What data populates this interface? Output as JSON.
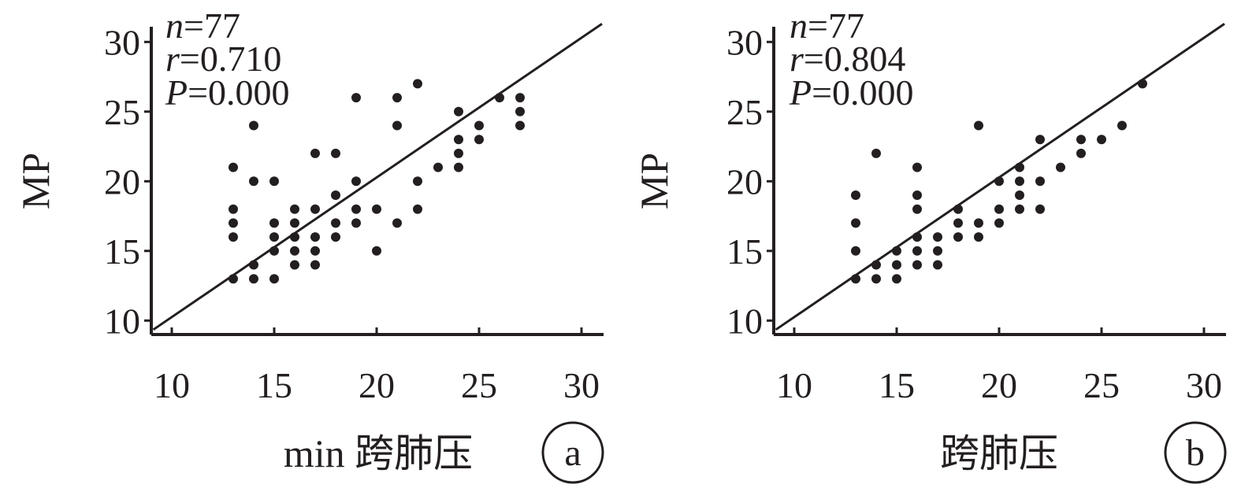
{
  "chart_data": [
    {
      "type": "scatter",
      "panel_label": "a",
      "xlabel": "min 跨肺压",
      "ylabel": "MP",
      "xlim": [
        9,
        31
      ],
      "ylim": [
        9,
        31
      ],
      "x_ticks": [
        "10",
        "15",
        "20",
        "25",
        "30"
      ],
      "y_ticks": [
        "10",
        "15",
        "20",
        "25",
        "30"
      ],
      "stats": {
        "n_label": "n",
        "n_value": "=77",
        "r_label": "r",
        "r_value": "=0.710",
        "p_label": "P",
        "p_value": "=0.000"
      },
      "fit_line": {
        "x": [
          9.1,
          31.0
        ],
        "y": [
          9.35,
          31.3
        ]
      },
      "points": [
        [
          13,
          21
        ],
        [
          13,
          18
        ],
        [
          13,
          17
        ],
        [
          13,
          16
        ],
        [
          13,
          13
        ],
        [
          14,
          24
        ],
        [
          14,
          20
        ],
        [
          14,
          14
        ],
        [
          14,
          13
        ],
        [
          15,
          20
        ],
        [
          15,
          17
        ],
        [
          15,
          16
        ],
        [
          15,
          15
        ],
        [
          15,
          13
        ],
        [
          16,
          18
        ],
        [
          16,
          17
        ],
        [
          16,
          16
        ],
        [
          16,
          15
        ],
        [
          16,
          14
        ],
        [
          17,
          22
        ],
        [
          17,
          18
        ],
        [
          17,
          16
        ],
        [
          17,
          15
        ],
        [
          17,
          14
        ],
        [
          18,
          22
        ],
        [
          18,
          19
        ],
        [
          18,
          17
        ],
        [
          18,
          16
        ],
        [
          19,
          26
        ],
        [
          19,
          20
        ],
        [
          19,
          18
        ],
        [
          19,
          17
        ],
        [
          20,
          18
        ],
        [
          20,
          15
        ],
        [
          21,
          26
        ],
        [
          21,
          24
        ],
        [
          21,
          17
        ],
        [
          22,
          27
        ],
        [
          22,
          20
        ],
        [
          22,
          18
        ],
        [
          23,
          21
        ],
        [
          24,
          25
        ],
        [
          24,
          23
        ],
        [
          24,
          22
        ],
        [
          24,
          21
        ],
        [
          25,
          24
        ],
        [
          25,
          23
        ],
        [
          26,
          26
        ],
        [
          27,
          26
        ],
        [
          27,
          25
        ],
        [
          27,
          24
        ]
      ]
    },
    {
      "type": "scatter",
      "panel_label": "b",
      "xlabel": "跨肺压",
      "ylabel": "MP",
      "xlim": [
        9,
        31
      ],
      "ylim": [
        9,
        31
      ],
      "x_ticks": [
        "10",
        "15",
        "20",
        "25",
        "30"
      ],
      "y_ticks": [
        "10",
        "15",
        "20",
        "25",
        "30"
      ],
      "stats": {
        "n_label": "n",
        "n_value": "=77",
        "r_label": "r",
        "r_value": "=0.804",
        "p_label": "P",
        "p_value": "=0.000"
      },
      "fit_line": {
        "x": [
          9.1,
          31.0
        ],
        "y": [
          9.35,
          31.3
        ]
      },
      "points": [
        [
          13,
          19
        ],
        [
          13,
          17
        ],
        [
          13,
          15
        ],
        [
          13,
          13
        ],
        [
          14,
          22
        ],
        [
          14,
          14
        ],
        [
          14,
          13
        ],
        [
          15,
          15
        ],
        [
          15,
          14
        ],
        [
          15,
          13
        ],
        [
          16,
          21
        ],
        [
          16,
          19
        ],
        [
          16,
          18
        ],
        [
          16,
          16
        ],
        [
          16,
          15
        ],
        [
          16,
          14
        ],
        [
          17,
          16
        ],
        [
          17,
          15
        ],
        [
          17,
          14
        ],
        [
          18,
          18
        ],
        [
          18,
          17
        ],
        [
          18,
          16
        ],
        [
          19,
          24
        ],
        [
          19,
          17
        ],
        [
          19,
          16
        ],
        [
          20,
          20
        ],
        [
          20,
          18
        ],
        [
          20,
          17
        ],
        [
          21,
          21
        ],
        [
          21,
          20
        ],
        [
          21,
          19
        ],
        [
          21,
          18
        ],
        [
          22,
          23
        ],
        [
          22,
          20
        ],
        [
          22,
          18
        ],
        [
          23,
          21
        ],
        [
          24,
          23
        ],
        [
          24,
          22
        ],
        [
          25,
          23
        ],
        [
          26,
          24
        ],
        [
          27,
          27
        ]
      ]
    }
  ]
}
